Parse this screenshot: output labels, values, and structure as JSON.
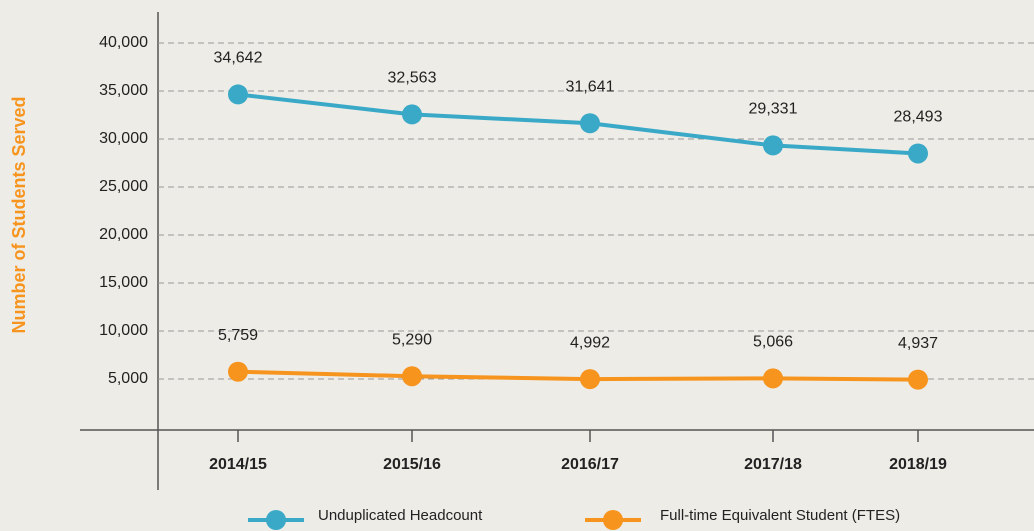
{
  "chart_data": {
    "type": "line",
    "y_label": "Number of Students Served",
    "categories": [
      "2014/15",
      "2015/16",
      "2016/17",
      "2017/18",
      "2018/19"
    ],
    "series": [
      {
        "name": "Unduplicated Headcount",
        "color": "#3aa9c8",
        "values": [
          34642,
          32563,
          31641,
          29331,
          28493
        ],
        "value_labels": [
          "34,642",
          "32,563",
          "31,641",
          "29,331",
          "28,493"
        ]
      },
      {
        "name": "Full-time Equivalent Student (FTES)",
        "color": "#f7941d",
        "values": [
          5759,
          5290,
          4992,
          5066,
          4937
        ],
        "value_labels": [
          "5,759",
          "5,290",
          "4,992",
          "5,066",
          "4,937"
        ]
      }
    ],
    "ylim": [
      0,
      40000
    ],
    "yticks": [
      {
        "value": 5000,
        "label": "5,000"
      },
      {
        "value": 10000,
        "label": "10,000"
      },
      {
        "value": 15000,
        "label": "15,000"
      },
      {
        "value": 20000,
        "label": "20,000"
      },
      {
        "value": 25000,
        "label": "25,000"
      },
      {
        "value": 30000,
        "label": "30,000"
      },
      {
        "value": 35000,
        "label": "35,000"
      },
      {
        "value": 40000,
        "label": "40,000"
      }
    ],
    "grid": true
  }
}
